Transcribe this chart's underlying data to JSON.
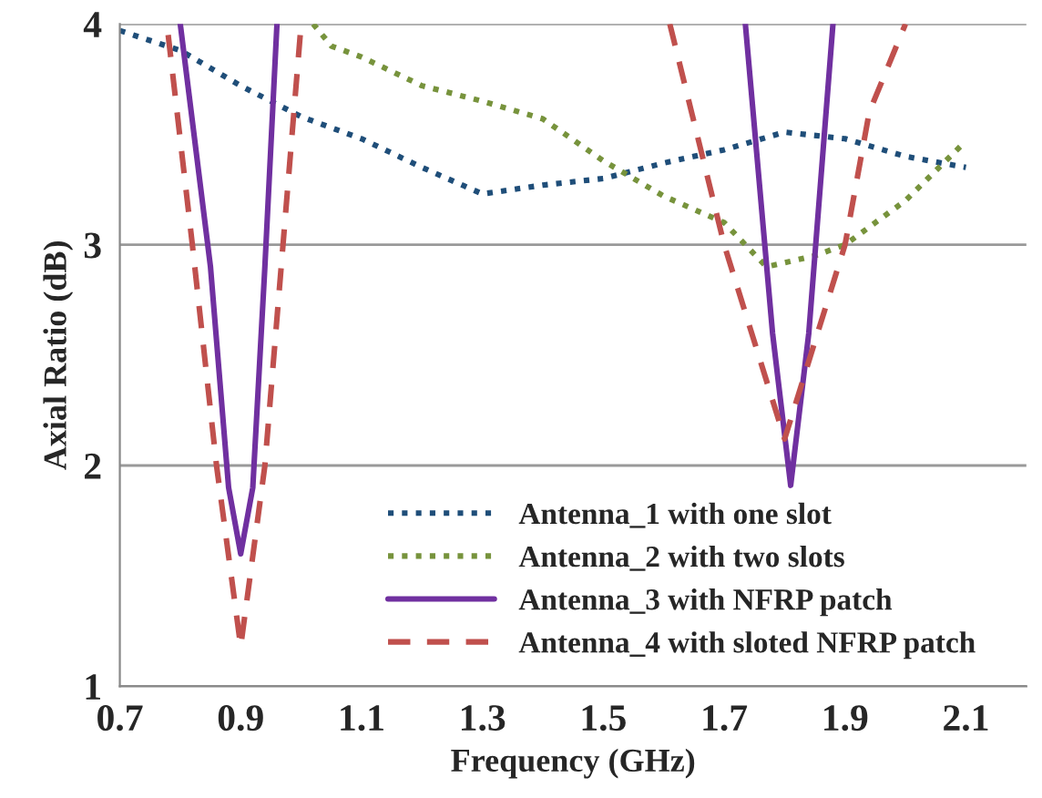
{
  "chart_data": {
    "type": "line",
    "xlabel": "Frequency (GHz)",
    "ylabel": "Axial Ratio (dB)",
    "xlim": [
      0.7,
      2.2
    ],
    "xticks": [
      0.7,
      0.9,
      1.1,
      1.3,
      1.5,
      1.7,
      1.9,
      2.1
    ],
    "ylim": [
      1,
      4
    ],
    "yticks": [
      1,
      2,
      3,
      4
    ],
    "grid": "y",
    "legend": "bottom",
    "marker": "none",
    "series": [
      {
        "name": "Antenna_1 with one slot",
        "color": "#1f4e79",
        "line_style": "dotted",
        "x": [
          0.7,
          0.8,
          0.9,
          1.0,
          1.1,
          1.2,
          1.3,
          1.4,
          1.5,
          1.6,
          1.7,
          1.8,
          1.9,
          2.0,
          2.1
        ],
        "values": [
          3.97,
          3.88,
          3.72,
          3.58,
          3.48,
          3.35,
          3.23,
          3.27,
          3.3,
          3.37,
          3.43,
          3.51,
          3.48,
          3.4,
          3.35
        ]
      },
      {
        "name": "Antenna_2 with two slots",
        "color": "#77933c",
        "line_style": "dotted",
        "x": [
          1.02,
          1.05,
          1.1,
          1.2,
          1.3,
          1.4,
          1.5,
          1.6,
          1.7,
          1.77,
          1.85,
          1.9,
          2.0,
          2.1
        ],
        "values": [
          4.0,
          3.9,
          3.85,
          3.72,
          3.65,
          3.57,
          3.38,
          3.22,
          3.1,
          2.9,
          2.95,
          3.0,
          3.2,
          3.47
        ]
      },
      {
        "name": "Antenna_3 with NFRP patch",
        "color": "#7030a0",
        "line_style": "solid",
        "x": [
          0.8,
          0.85,
          0.88,
          0.9,
          0.92,
          0.94,
          0.96,
          1.3,
          1.735,
          1.78,
          1.81,
          1.84,
          1.88
        ],
        "values": [
          4.0,
          2.9,
          1.9,
          1.6,
          1.9,
          2.9,
          4.0,
          null,
          4.0,
          2.6,
          1.91,
          2.6,
          4.0
        ]
      },
      {
        "name": "Antenna_4 with sloted NFRP patch",
        "color": "#c0504d",
        "line_style": "dashed",
        "x": [
          0.78,
          0.82,
          0.86,
          0.9,
          0.94,
          0.97,
          1.0,
          1.3,
          1.61,
          1.7,
          1.8,
          1.9,
          1.94,
          2.0
        ],
        "values": [
          3.95,
          3.0,
          2.0,
          1.18,
          2.0,
          3.0,
          4.0,
          null,
          4.0,
          3.0,
          2.12,
          3.0,
          3.6,
          4.0
        ]
      }
    ]
  }
}
